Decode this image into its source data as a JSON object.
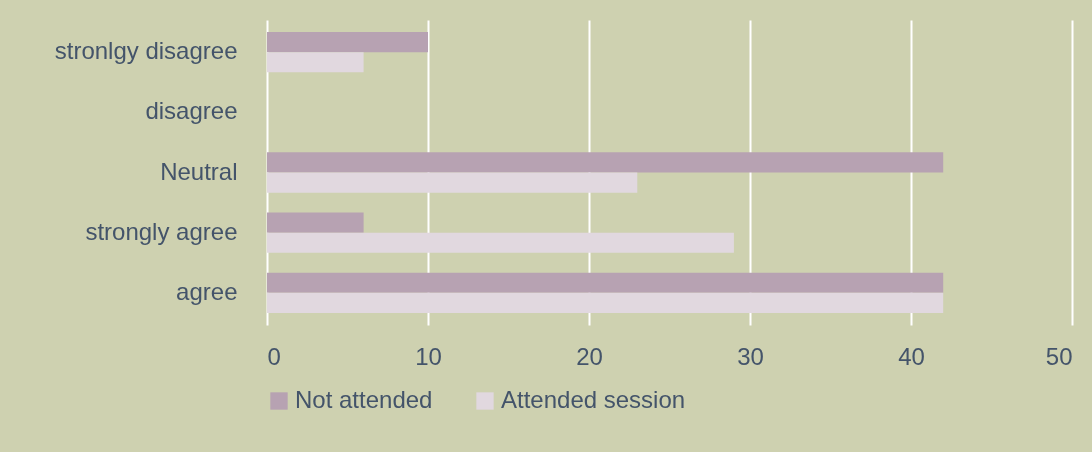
{
  "chart_data": {
    "type": "bar",
    "orientation": "horizontal",
    "categories": [
      "stronlgy disagree",
      "disagree",
      "Neutral",
      "strongly agree",
      "agree"
    ],
    "series": [
      {
        "name": "Not attended",
        "color": "#b7a2b2",
        "values": [
          10,
          0,
          42,
          6,
          42
        ]
      },
      {
        "name": "Attended session",
        "color": "#e1d8df",
        "values": [
          6,
          0,
          23,
          29,
          42
        ]
      }
    ],
    "xlim": [
      0,
      50
    ],
    "xticks": [
      0,
      10,
      20,
      30,
      40,
      50
    ],
    "grid": "x",
    "legend": "bottom"
  }
}
